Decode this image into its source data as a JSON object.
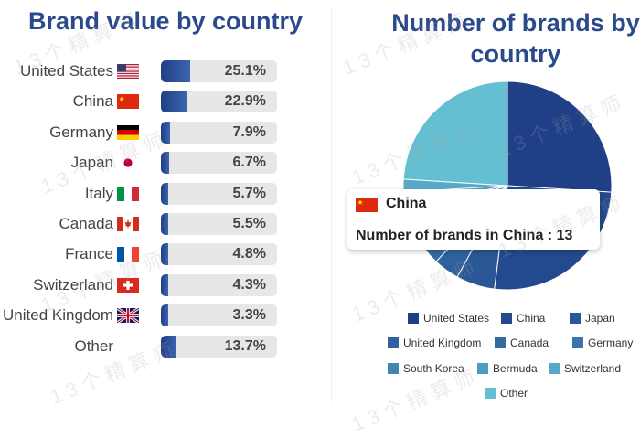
{
  "left": {
    "title": "Brand value by country",
    "rows": [
      {
        "country": "United States",
        "value": 25.1,
        "label": "25.1%",
        "flag": "us-flag"
      },
      {
        "country": "China",
        "value": 22.9,
        "label": "22.9%",
        "flag": "china-flag"
      },
      {
        "country": "Germany",
        "value": 7.9,
        "label": "7.9%",
        "flag": "germany-flag"
      },
      {
        "country": "Japan",
        "value": 6.7,
        "label": "6.7%",
        "flag": "japan-flag"
      },
      {
        "country": "Italy",
        "value": 5.7,
        "label": "5.7%",
        "flag": "italy-flag"
      },
      {
        "country": "Canada",
        "value": 5.5,
        "label": "5.5%",
        "flag": "canada-flag"
      },
      {
        "country": "France",
        "value": 4.8,
        "label": "4.8%",
        "flag": "france-flag"
      },
      {
        "country": "Switzerland",
        "value": 4.3,
        "label": "4.3%",
        "flag": "switzerland-flag"
      },
      {
        "country": "United Kingdom",
        "value": 3.3,
        "label": "3.3%",
        "flag": "uk-flag"
      },
      {
        "country": "Other",
        "value": 13.7,
        "label": "13.7%",
        "flag": ""
      }
    ]
  },
  "right": {
    "title": "Number of brands by country",
    "tooltip": {
      "country": "China",
      "text": "Number of brands in China : 13",
      "flag": "china-flag"
    },
    "legend": [
      "United States",
      "China",
      "Japan",
      "United Kingdom",
      "Canada",
      "Germany",
      "South Korea",
      "Bermuda",
      "Switzerland",
      "Other"
    ]
  },
  "colors": {
    "title": "#2b4a8b",
    "bar": "#2a4f9b",
    "track": "#e7e7e7",
    "pie": [
      "#1f3f86",
      "#234a8f",
      "#2a5896",
      "#2f619c",
      "#3569a2",
      "#3a74a8",
      "#4186b3",
      "#4e9dc1",
      "#58a9c8",
      "#65bfd2"
    ]
  },
  "watermark": "13个精算师",
  "chart_data": [
    {
      "type": "bar",
      "title": "Brand value by country",
      "categories": [
        "United States",
        "China",
        "Germany",
        "Japan",
        "Italy",
        "Canada",
        "France",
        "Switzerland",
        "United Kingdom",
        "Other"
      ],
      "values": [
        25.1,
        22.9,
        7.9,
        6.7,
        5.7,
        5.5,
        4.8,
        4.3,
        3.3,
        13.7
      ],
      "unit": "%"
    },
    {
      "type": "pie",
      "title": "Number of brands by country",
      "categories": [
        "United States",
        "China",
        "Japan",
        "United Kingdom",
        "Canada",
        "Germany",
        "South Korea",
        "Bermuda",
        "Switzerland",
        "Other"
      ],
      "values": [
        13,
        13,
        3,
        2,
        2,
        2,
        1,
        1,
        1,
        12
      ],
      "highlighted": "China",
      "legend": "bottom"
    }
  ]
}
